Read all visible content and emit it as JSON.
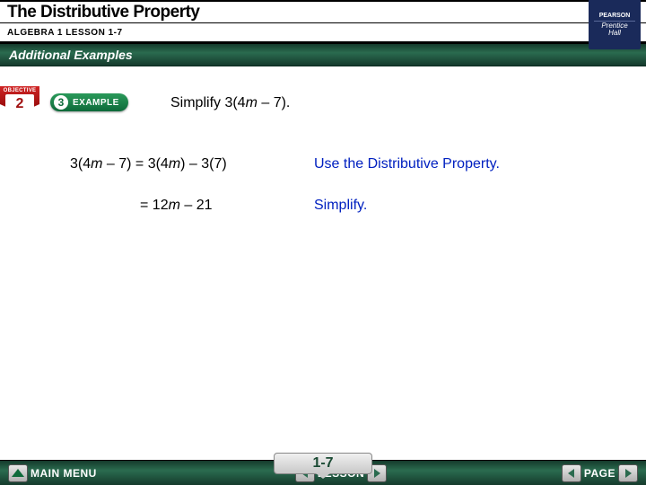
{
  "colors": {
    "banner_gradient_top": "#153a2c",
    "banner_gradient_mid": "#2a6b4f",
    "explanation_text": "#0020c0",
    "objective_red": "#a01010",
    "brand_bg": "#1a2a5a"
  },
  "header": {
    "title": "The Distributive Property",
    "subtitle": "ALGEBRA 1  LESSON 1-7",
    "banner": "Additional Examples"
  },
  "brand": {
    "line1": "PEARSON",
    "line2": "Prentice",
    "line3": "Hall"
  },
  "objective": {
    "label": "OBJECTIVE",
    "number": "2"
  },
  "example_pill": {
    "number": "3",
    "label": "EXAMPLE"
  },
  "prompt": {
    "pre": "Simplify 3(4",
    "var": "m",
    "post": " – 7)."
  },
  "steps": [
    {
      "left": {
        "pre": "3(4",
        "v1": "m",
        "mid1": " – 7) = 3(4",
        "v2": "m",
        "mid2": ") – 3(7)"
      },
      "right": "Use the Distributive Property."
    },
    {
      "left": {
        "pre": "= 12",
        "v1": "m",
        "mid1": " – 21",
        "v2": "",
        "mid2": ""
      },
      "right": "Simplify."
    }
  ],
  "nav": {
    "main_menu": "MAIN MENU",
    "lesson": "LESSON",
    "page": "PAGE",
    "page_number": "1-7"
  }
}
